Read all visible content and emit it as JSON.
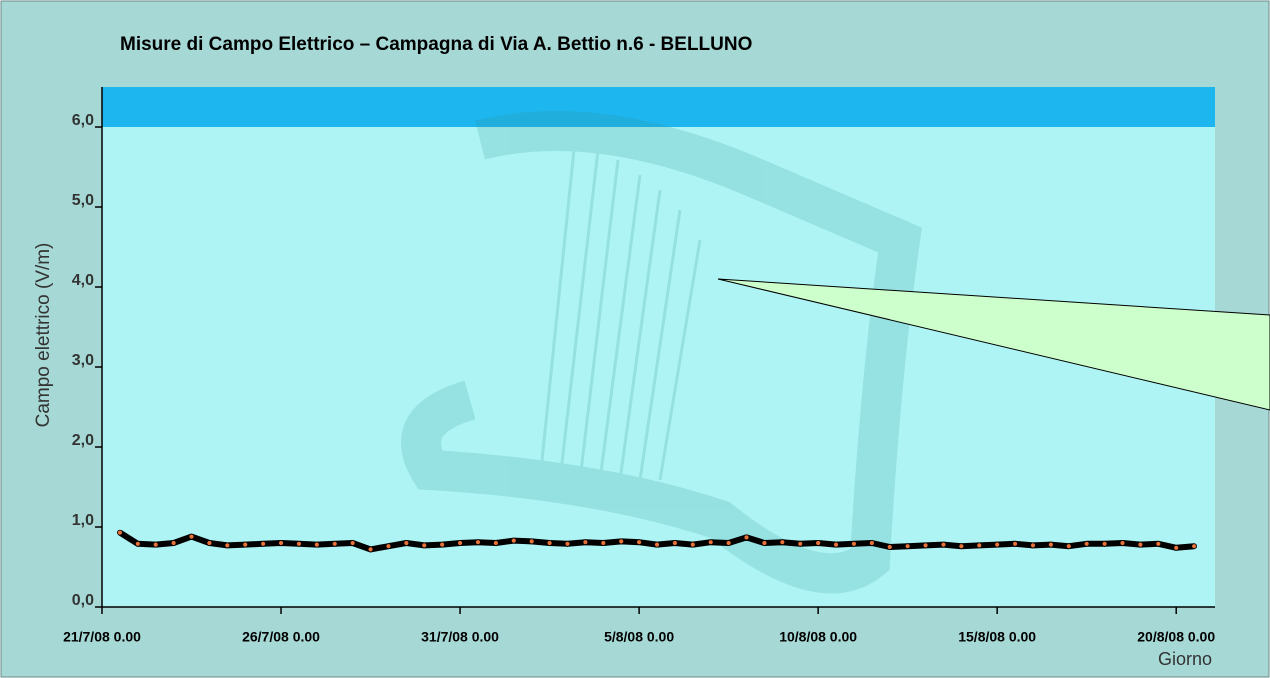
{
  "chart_data": {
    "type": "line",
    "title": "Misure di Campo Elettrico – Campagna di Via A. Bettio n.6 - BELLUNO",
    "y_label": "Campo elettrico (V/m)",
    "x_label": "Giorno",
    "color": "#000000",
    "marker_color": "#e8733a",
    "band": {
      "from": 6,
      "to": 6.5,
      "color": "#1eb6ee"
    },
    "x": [
      "2008-07-21 12:00",
      "2008-07-22 00:00",
      "2008-07-22 12:00",
      "2008-07-23 00:00",
      "2008-07-23 12:00",
      "2008-07-24 00:00",
      "2008-07-24 12:00",
      "2008-07-25 00:00",
      "2008-07-25 12:00",
      "2008-07-26 00:00",
      "2008-07-26 12:00",
      "2008-07-27 00:00",
      "2008-07-27 12:00",
      "2008-07-28 00:00",
      "2008-07-28 12:00",
      "2008-07-29 00:00",
      "2008-07-29 12:00",
      "2008-07-30 00:00",
      "2008-07-30 12:00",
      "2008-07-31 00:00",
      "2008-07-31 12:00",
      "2008-08-01 00:00",
      "2008-08-01 12:00",
      "2008-08-02 00:00",
      "2008-08-02 12:00",
      "2008-08-03 00:00",
      "2008-08-03 12:00",
      "2008-08-04 00:00",
      "2008-08-04 12:00",
      "2008-08-05 00:00",
      "2008-08-05 12:00",
      "2008-08-06 00:00",
      "2008-08-06 12:00",
      "2008-08-07 00:00",
      "2008-08-07 12:00",
      "2008-08-08 00:00",
      "2008-08-08 12:00",
      "2008-08-09 00:00",
      "2008-08-09 12:00",
      "2008-08-10 00:00",
      "2008-08-10 12:00",
      "2008-08-11 00:00",
      "2008-08-11 12:00",
      "2008-08-12 00:00",
      "2008-08-12 12:00",
      "2008-08-13 00:00",
      "2008-08-13 12:00",
      "2008-08-14 00:00",
      "2008-08-14 12:00",
      "2008-08-15 00:00",
      "2008-08-15 12:00",
      "2008-08-16 00:00",
      "2008-08-16 12:00",
      "2008-08-17 00:00",
      "2008-08-17 12:00",
      "2008-08-18 00:00",
      "2008-08-18 12:00",
      "2008-08-19 00:00",
      "2008-08-19 12:00",
      "2008-08-20 00:00",
      "2008-08-20 12:00"
    ],
    "values": [
      0.93,
      0.79,
      0.78,
      0.8,
      0.88,
      0.8,
      0.77,
      0.78,
      0.79,
      0.8,
      0.79,
      0.78,
      0.79,
      0.8,
      0.72,
      0.76,
      0.8,
      0.77,
      0.78,
      0.8,
      0.81,
      0.8,
      0.83,
      0.82,
      0.8,
      0.79,
      0.81,
      0.8,
      0.82,
      0.81,
      0.78,
      0.8,
      0.78,
      0.81,
      0.8,
      0.87,
      0.8,
      0.81,
      0.79,
      0.8,
      0.78,
      0.79,
      0.8,
      0.75,
      0.76,
      0.77,
      0.78,
      0.76,
      0.77,
      0.78,
      0.79,
      0.77,
      0.78,
      0.76,
      0.79,
      0.79,
      0.8,
      0.78,
      0.79,
      0.74,
      0.76
    ],
    "xlim": [
      "2008-07-21 00:00",
      "2008-08-21 02:00"
    ],
    "xticks": [
      {
        "value": "2008-07-21 00:00",
        "label": "21/7/08 0.00"
      },
      {
        "value": "2008-07-26 00:00",
        "label": "26/7/08 0.00"
      },
      {
        "value": "2008-07-31 00:00",
        "label": "31/7/08 0.00"
      },
      {
        "value": "2008-08-05 00:00",
        "label": "5/8/08 0.00"
      },
      {
        "value": "2008-08-10 00:00",
        "label": "10/8/08 0.00"
      },
      {
        "value": "2008-08-15 00:00",
        "label": "15/8/08 0.00"
      },
      {
        "value": "2008-08-20 00:00",
        "label": "20/8/08 0.00"
      }
    ],
    "ylim": [
      0,
      6.5
    ],
    "yticks": [
      {
        "value": 0,
        "label": "0,0"
      },
      {
        "value": 1,
        "label": "1,0"
      },
      {
        "value": 2,
        "label": "2,0"
      },
      {
        "value": 3,
        "label": "3,0"
      },
      {
        "value": 4,
        "label": "4,0"
      },
      {
        "value": 5,
        "label": "5,0"
      },
      {
        "value": 6,
        "label": "6,0"
      }
    ]
  }
}
